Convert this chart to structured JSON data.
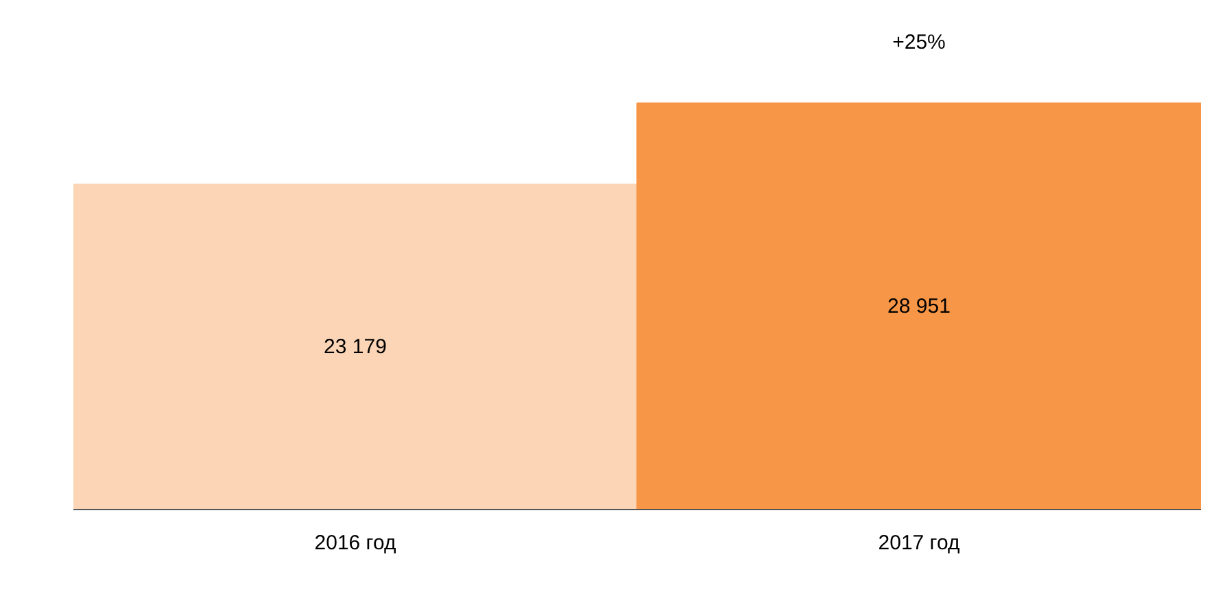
{
  "chart_data": {
    "type": "bar",
    "categories": [
      "2016 год",
      "2017 год"
    ],
    "values": [
      23179,
      28951
    ],
    "colors": [
      "#fbd5b5",
      "#f79646"
    ],
    "data_labels": true,
    "value_labels": [
      "23 179",
      "28 951"
    ],
    "annotations": [
      "+25%"
    ],
    "grid": false
  }
}
